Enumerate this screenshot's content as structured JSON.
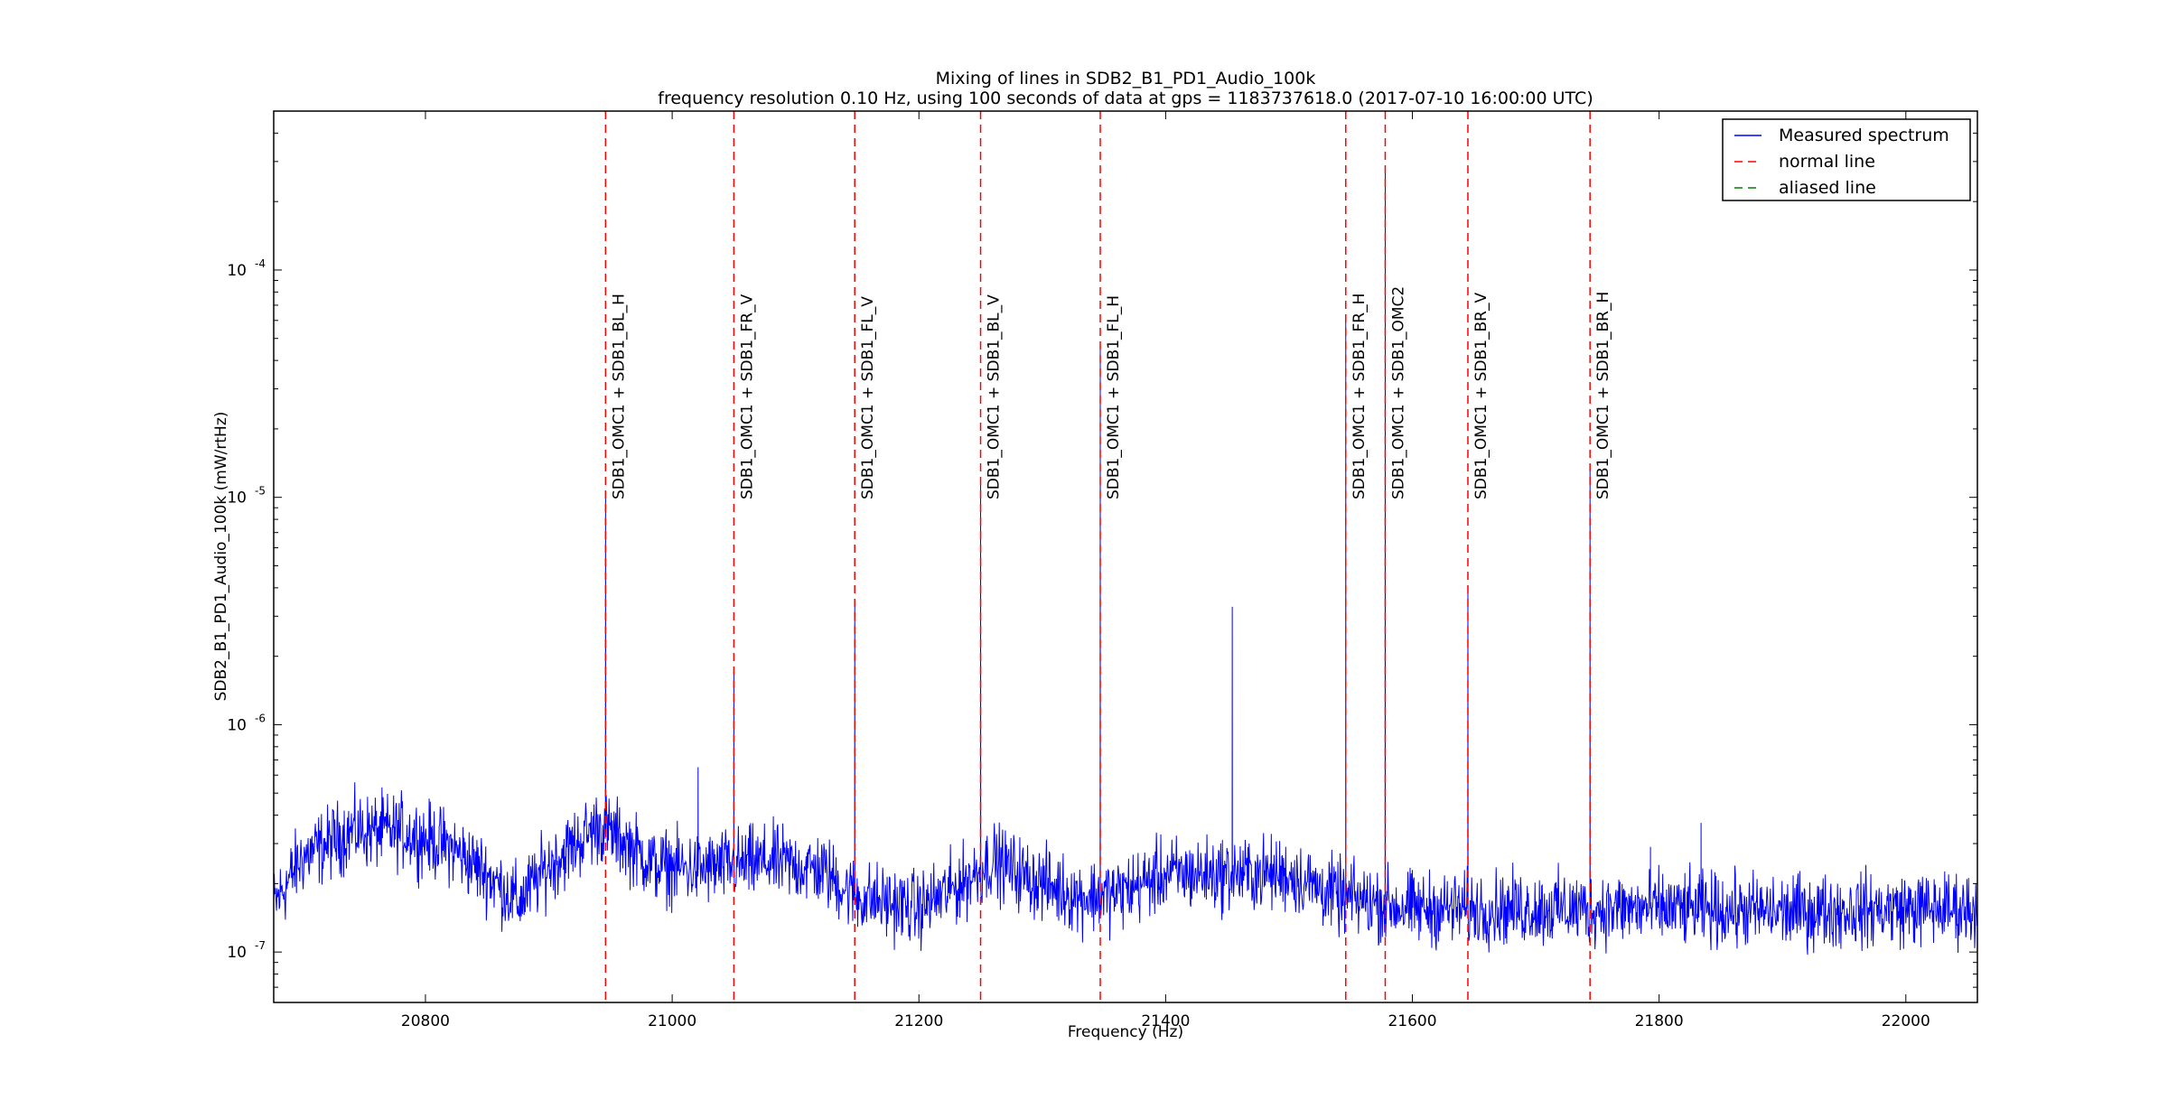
{
  "chart_data": {
    "type": "line",
    "title": "Mixing of lines in SDB2_B1_PD1_Audio_100k",
    "subtitle": "frequency resolution 0.10 Hz, using 100 seconds of data at gps = 1183737618.0 (2017-07-10 16:00:00 UTC)",
    "xlabel": "Frequency (Hz)",
    "ylabel": "SDB2_B1_PD1_Audio_100k (mW/rtHz)",
    "xlim": [
      20677,
      22058
    ],
    "ylim": [
      6e-08,
      0.0005
    ],
    "yscale": "log",
    "x_ticks": [
      20800,
      21000,
      21200,
      21400,
      21600,
      21800,
      22000
    ],
    "x_tick_labels": [
      "20800",
      "21000",
      "21200",
      "21400",
      "21600",
      "21800",
      "22000"
    ],
    "y_ticks": [
      1e-07,
      1e-06,
      1e-05,
      0.0001
    ],
    "y_tick_labels": [
      {
        "base": "10",
        "exp": "-7"
      },
      {
        "base": "10",
        "exp": "-6"
      },
      {
        "base": "10",
        "exp": "-5"
      },
      {
        "base": "10",
        "exp": "-4"
      }
    ],
    "grid": false,
    "legend_position": "top-right",
    "legend": [
      {
        "label": "Measured spectrum",
        "style": "solid",
        "color": "#0000ff"
      },
      {
        "label": "normal line",
        "style": "dashed",
        "color": "#ff0000"
      },
      {
        "label": "aliased line",
        "style": "dashed",
        "color": "#008000"
      }
    ],
    "series": [
      {
        "name": "Measured spectrum",
        "color": "#0000ff",
        "baseline": [
          [
            20677,
            1.6e-07
          ],
          [
            20700,
            2.6e-07
          ],
          [
            20740,
            3.4e-07
          ],
          [
            20780,
            3.4e-07
          ],
          [
            20820,
            2.9e-07
          ],
          [
            20850,
            2.2e-07
          ],
          [
            20875,
            1.65e-07
          ],
          [
            20900,
            2.4e-07
          ],
          [
            20940,
            3.6e-07
          ],
          [
            20960,
            3.1e-07
          ],
          [
            20985,
            2.4e-07
          ],
          [
            21020,
            2.3e-07
          ],
          [
            21080,
            2.5e-07
          ],
          [
            21120,
            2.3e-07
          ],
          [
            21150,
            1.75e-07
          ],
          [
            21200,
            1.55e-07
          ],
          [
            21235,
            2e-07
          ],
          [
            21260,
            2.55e-07
          ],
          [
            21290,
            2.1e-07
          ],
          [
            21330,
            1.75e-07
          ],
          [
            21360,
            1.8e-07
          ],
          [
            21400,
            2.2e-07
          ],
          [
            21450,
            2.2e-07
          ],
          [
            21500,
            2.2e-07
          ],
          [
            21540,
            1.75e-07
          ],
          [
            21600,
            1.55e-07
          ],
          [
            21700,
            1.55e-07
          ],
          [
            21800,
            1.55e-07
          ],
          [
            21900,
            1.5e-07
          ],
          [
            22000,
            1.55e-07
          ],
          [
            22058,
            1.55e-07
          ]
        ],
        "peaks": [
          [
            20946,
            1.05e-05
          ],
          [
            21021,
            6.5e-07
          ],
          [
            21050,
            1.7e-06
          ],
          [
            21148,
            3.5e-06
          ],
          [
            21250,
            1.2e-05
          ],
          [
            21347,
            4.5e-05
          ],
          [
            21454,
            3.3e-06
          ],
          [
            21546,
            6.2e-05
          ],
          [
            21578,
            0.00027
          ],
          [
            21645,
            4e-06
          ],
          [
            21744,
            1.3e-05
          ],
          [
            21793,
            2.9e-07
          ],
          [
            21834,
            3.7e-07
          ]
        ]
      }
    ],
    "lines": [
      {
        "x": 20946,
        "label": "SDB1_OMC1 + SDB1_BL_H",
        "kind": "normal line"
      },
      {
        "x": 21050,
        "label": "SDB1_OMC1 + SDB1_FR_V",
        "kind": "normal line"
      },
      {
        "x": 21148,
        "label": "SDB1_OMC1 + SDB1_FL_V",
        "kind": "normal line"
      },
      {
        "x": 21250,
        "label": "SDB1_OMC1 + SDB1_BL_V",
        "kind": "normal line"
      },
      {
        "x": 21347,
        "label": "SDB1_OMC1 + SDB1_FL_H",
        "kind": "normal line"
      },
      {
        "x": 21546,
        "label": "SDB1_OMC1 + SDB1_FR_H",
        "kind": "normal line"
      },
      {
        "x": 21578,
        "label": "SDB1_OMC1 + SDB1_OMC2",
        "kind": "normal line"
      },
      {
        "x": 21645,
        "label": "SDB1_OMC1 + SDB1_BR_V",
        "kind": "normal line"
      },
      {
        "x": 21744,
        "label": "SDB1_OMC1 + SDB1_BR_H",
        "kind": "normal line"
      }
    ]
  }
}
